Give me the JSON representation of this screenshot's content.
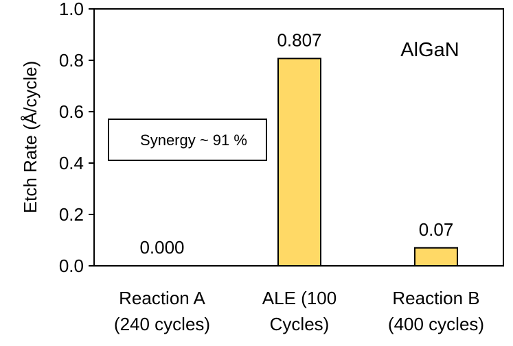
{
  "chart_data": {
    "type": "bar",
    "categories": [
      [
        "Reaction A",
        "(240 cycles)"
      ],
      [
        "ALE (100",
        "Cycles)"
      ],
      [
        "Reaction B",
        "(400 cycles)"
      ]
    ],
    "values": [
      0.0,
      0.807,
      0.07
    ],
    "data_labels": [
      "0.000",
      "0.807",
      "0.07"
    ],
    "ylabel": "Etch Rate (Å/cycle)",
    "xlabel": "",
    "ylim": [
      0,
      1.0
    ],
    "yticks": [
      "0.0",
      "0.2",
      "0.4",
      "0.6",
      "0.8",
      "1.0"
    ],
    "annotation": "AlGaN",
    "text_box": "Synergy ~ 91 %",
    "bar_color": "#FFD966",
    "bar_edge_color": "#000000",
    "grid": false,
    "legend": "none"
  }
}
